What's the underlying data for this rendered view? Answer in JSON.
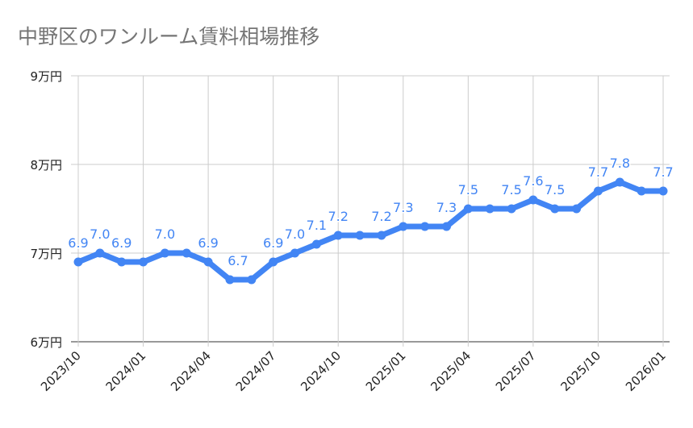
{
  "chart_data": {
    "type": "line",
    "title": "中野区のワンルーム賃料相場推移",
    "xlabel": "",
    "ylabel": "",
    "ylim": [
      6,
      9
    ],
    "y_ticks": [
      "6万円",
      "7万円",
      "8万円",
      "9万円"
    ],
    "x_ticks": [
      "2023/10",
      "2024/01",
      "2024/04",
      "2024/07",
      "2024/10",
      "2025/01",
      "2025/04",
      "2025/07",
      "2025/10",
      "2026/01"
    ],
    "grid": true,
    "legend": "none",
    "color": "#4285f4",
    "x": [
      "2023/10",
      "2023/11",
      "2023/12",
      "2024/01",
      "2024/02",
      "2024/03",
      "2024/04",
      "2024/05",
      "2024/06",
      "2024/07",
      "2024/08",
      "2024/09",
      "2024/10",
      "2024/11",
      "2024/12",
      "2025/01",
      "2025/02",
      "2025/03",
      "2025/04",
      "2025/05",
      "2025/06",
      "2025/07",
      "2025/08",
      "2025/09",
      "2025/10",
      "2025/11",
      "2025/12",
      "2026/01"
    ],
    "values": [
      6.9,
      7.0,
      6.9,
      6.9,
      7.0,
      7.0,
      6.9,
      6.7,
      6.7,
      6.9,
      7.0,
      7.1,
      7.2,
      7.2,
      7.2,
      7.3,
      7.3,
      7.3,
      7.5,
      7.5,
      7.5,
      7.6,
      7.5,
      7.5,
      7.7,
      7.8,
      7.7,
      7.7
    ],
    "data_labels": [
      {
        "index": 0,
        "text": "6.9"
      },
      {
        "index": 1,
        "text": "7.0"
      },
      {
        "index": 2,
        "text": "6.9"
      },
      {
        "index": 4,
        "text": "7.0"
      },
      {
        "index": 6,
        "text": "6.9"
      },
      {
        "index": 7,
        "text": "6.7"
      },
      {
        "index": 9,
        "text": "6.9"
      },
      {
        "index": 10,
        "text": "7.0"
      },
      {
        "index": 11,
        "text": "7.1"
      },
      {
        "index": 12,
        "text": "7.2"
      },
      {
        "index": 14,
        "text": "7.2"
      },
      {
        "index": 15,
        "text": "7.3"
      },
      {
        "index": 17,
        "text": "7.3"
      },
      {
        "index": 18,
        "text": "7.5"
      },
      {
        "index": 20,
        "text": "7.5"
      },
      {
        "index": 21,
        "text": "7.6"
      },
      {
        "index": 22,
        "text": "7.5"
      },
      {
        "index": 24,
        "text": "7.7"
      },
      {
        "index": 25,
        "text": "7.8"
      },
      {
        "index": 27,
        "text": "7.7"
      }
    ]
  }
}
